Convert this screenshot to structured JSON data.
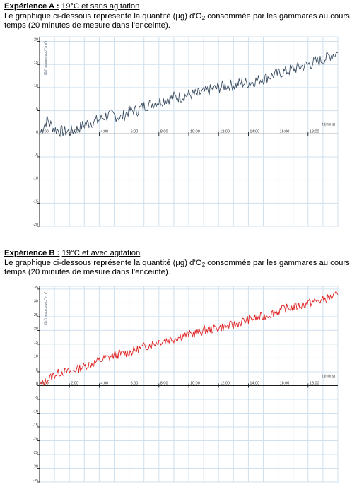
{
  "exp_a": {
    "title_bold": "Expérience A :",
    "title_rest": "19°C et sans agitation",
    "desc_part1": "Le graphique ci-dessous représente la quantité (µg) d’O",
    "desc_sub": "2",
    "desc_part2": " consommée par les gammares au cours du",
    "desc_line2": "temps (20 minutes de mesure dans l’enceinte)."
  },
  "exp_b": {
    "title_bold": "Expérience B :",
    "title_rest": "19°C et avec agitation",
    "desc_part1": "Le graphique ci-dessous représente la quantité (µg) d’O",
    "desc_sub": "2",
    "desc_part2": " consommée par les gammares au cours du",
    "desc_line2": "temps (20 minutes de mesure dans l’enceinte)."
  },
  "chart_data": [
    {
      "type": "line",
      "ylabel": "QO2_consommé (µg)",
      "xlabel": "t (min:s)",
      "x_ticks": [
        "0:00",
        "2:00",
        "4:00",
        "6:00",
        "8:00",
        "10:00",
        "12:00",
        "14:00",
        "16:00",
        "18:00"
      ],
      "y_ticks": [
        -20,
        -15,
        -10,
        -5,
        0,
        5,
        10,
        15,
        20
      ],
      "xlim": [
        0,
        20
      ],
      "ylim": [
        -20,
        21
      ],
      "grid": true,
      "series_color": "#3d4f63",
      "x": [
        0,
        0.5,
        1,
        1.5,
        2,
        2.5,
        3,
        3.5,
        4,
        4.5,
        5,
        5.5,
        6,
        6.5,
        7,
        7.5,
        8,
        8.5,
        9,
        9.5,
        10,
        10.5,
        11,
        11.5,
        12,
        12.5,
        13,
        13.5,
        14,
        14.5,
        15,
        15.5,
        16,
        16.5,
        17,
        17.5,
        18,
        18.5,
        19,
        19.5,
        20
      ],
      "y": [
        0,
        3,
        1,
        0.5,
        0.5,
        1,
        2,
        2.5,
        3,
        4,
        4,
        3.5,
        5,
        5,
        6,
        6.5,
        7,
        7.5,
        8,
        8,
        8.5,
        8.5,
        9,
        9.5,
        10,
        10.5,
        10.5,
        11,
        11,
        11.5,
        12,
        12.5,
        13,
        13.5,
        14,
        14.5,
        15,
        15.5,
        16,
        17,
        17.5
      ]
    },
    {
      "type": "line",
      "ylabel": "QO2_consommé (µg)",
      "xlabel": "t (min:s)",
      "x_ticks": [
        "0:00",
        "2:00",
        "4:00",
        "6:00",
        "8:00",
        "10:00",
        "12:00",
        "14:00",
        "16:00",
        "18:00"
      ],
      "y_ticks": [
        -35,
        -30,
        -25,
        -20,
        -15,
        -10,
        -5,
        0,
        5,
        10,
        15,
        20,
        25,
        30,
        35
      ],
      "xlim": [
        0,
        20
      ],
      "ylim": [
        -35,
        36
      ],
      "grid": true,
      "series_color": "#e02020",
      "x": [
        0,
        0.5,
        1,
        1.5,
        2,
        2.5,
        3,
        3.5,
        4,
        4.5,
        5,
        5.5,
        6,
        6.5,
        7,
        7.5,
        8,
        8.5,
        9,
        9.5,
        10,
        10.5,
        11,
        11.5,
        12,
        12.5,
        13,
        13.5,
        14,
        14.5,
        15,
        15.5,
        16,
        16.5,
        17,
        17.5,
        18,
        18.5,
        19,
        19.5,
        20
      ],
      "y": [
        0,
        2,
        4,
        5,
        5,
        6,
        7,
        8,
        9,
        10,
        11,
        11.5,
        12,
        13,
        14,
        15,
        16,
        16.5,
        17,
        18,
        18.5,
        19,
        20,
        20.5,
        21,
        21.5,
        22,
        23,
        24,
        24.5,
        25,
        26,
        27,
        28,
        28.5,
        29,
        30,
        30.5,
        31,
        32,
        33
      ]
    }
  ]
}
